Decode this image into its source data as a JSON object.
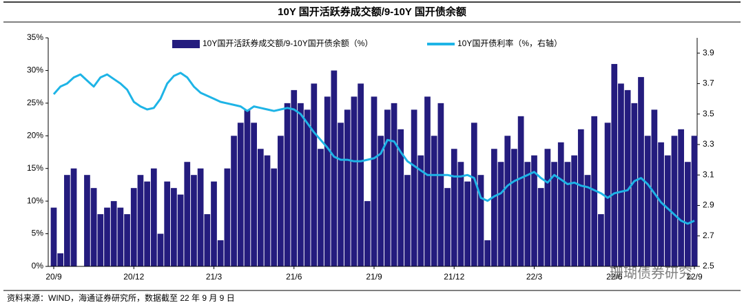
{
  "chart_data": {
    "type": "bar_line",
    "title": "10Y 国开活跃券成交额/9-10Y 国开债余额",
    "source": "资料来源：WIND，海通证券研究所，数据截至 22 年 9 月 9 日",
    "watermark": "珊瑚债券研究",
    "categories": [
      "20/9",
      null,
      null,
      null,
      null,
      null,
      null,
      null,
      null,
      null,
      null,
      null,
      "20/12",
      null,
      null,
      null,
      null,
      null,
      null,
      null,
      null,
      null,
      null,
      null,
      "21/3",
      null,
      null,
      null,
      null,
      null,
      null,
      null,
      null,
      null,
      null,
      null,
      "21/6",
      null,
      null,
      null,
      null,
      null,
      null,
      null,
      null,
      null,
      null,
      null,
      "21/9",
      null,
      null,
      null,
      null,
      null,
      null,
      null,
      null,
      null,
      null,
      null,
      "21/12",
      null,
      null,
      null,
      null,
      null,
      null,
      null,
      null,
      null,
      null,
      null,
      "22/3",
      null,
      null,
      null,
      null,
      null,
      null,
      null,
      null,
      null,
      null,
      null,
      "22/6",
      null,
      null,
      null,
      null,
      null,
      null,
      null,
      null,
      null,
      null,
      null,
      "22/9"
    ],
    "series": [
      {
        "name": "10Y国开活跃券成交额/9-10Y国开债余额（%）",
        "type": "bar",
        "color": "#241c7e",
        "values": [
          9,
          2,
          14,
          15,
          0,
          14,
          12,
          8,
          9,
          10,
          9,
          8,
          12,
          14,
          13,
          15,
          5,
          13,
          12,
          11,
          16,
          14,
          15,
          8,
          13,
          4,
          15,
          20,
          22,
          24,
          22,
          18,
          17,
          15,
          20,
          25,
          27,
          25,
          24,
          28,
          18,
          26,
          30,
          22,
          24,
          26,
          28,
          10,
          26,
          20,
          24,
          25,
          21,
          14,
          24,
          17,
          26,
          20,
          25,
          12,
          18,
          16,
          13,
          22,
          14,
          4,
          18,
          16,
          20,
          18,
          23,
          16,
          17,
          12,
          18,
          16,
          19,
          16,
          17,
          21,
          14,
          23,
          8,
          22,
          31,
          28,
          27,
          25,
          29,
          20,
          24,
          19,
          17,
          20,
          21,
          16,
          20
        ]
      },
      {
        "name": "10Y国开债利率（%，右轴）",
        "type": "line",
        "axis": "y2",
        "color": "#1eb4e6",
        "values": [
          3.63,
          3.68,
          3.7,
          3.74,
          3.76,
          3.72,
          3.68,
          3.74,
          3.76,
          3.73,
          3.7,
          3.66,
          3.58,
          3.55,
          3.53,
          3.54,
          3.6,
          3.7,
          3.75,
          3.77,
          3.74,
          3.68,
          3.64,
          3.62,
          3.6,
          3.58,
          3.57,
          3.56,
          3.55,
          3.52,
          3.55,
          3.54,
          3.53,
          3.52,
          3.53,
          3.54,
          3.53,
          3.5,
          3.44,
          3.38,
          3.33,
          3.28,
          3.22,
          3.2,
          3.2,
          3.19,
          3.19,
          3.2,
          3.21,
          3.24,
          3.33,
          3.32,
          3.25,
          3.19,
          3.16,
          3.13,
          3.1,
          3.1,
          3.1,
          3.1,
          3.09,
          3.09,
          3.1,
          3.08,
          2.95,
          2.93,
          2.96,
          2.98,
          3.03,
          3.06,
          3.08,
          3.1,
          3.12,
          3.08,
          3.05,
          3.1,
          3.07,
          3.04,
          3.05,
          3.03,
          3.02,
          3.0,
          2.98,
          2.95,
          2.98,
          2.99,
          3.0,
          3.06,
          3.08,
          3.04,
          2.98,
          2.92,
          2.88,
          2.84,
          2.8,
          2.78,
          2.8
        ]
      }
    ],
    "ylim": [
      0,
      35
    ],
    "yticks": [
      {
        "value": 0,
        "label": "0%"
      },
      {
        "value": 5,
        "label": "5%"
      },
      {
        "value": 10,
        "label": "10%"
      },
      {
        "value": 15,
        "label": "15%"
      },
      {
        "value": 20,
        "label": "20%"
      },
      {
        "value": 25,
        "label": "25%"
      },
      {
        "value": 30,
        "label": "30%"
      },
      {
        "value": 35,
        "label": "35%"
      }
    ],
    "y2lim": [
      2.5,
      4.0
    ],
    "y2ticks": [
      2.5,
      2.7,
      2.9,
      3.1,
      3.3,
      3.5,
      3.7,
      3.9
    ],
    "legend": "top"
  }
}
